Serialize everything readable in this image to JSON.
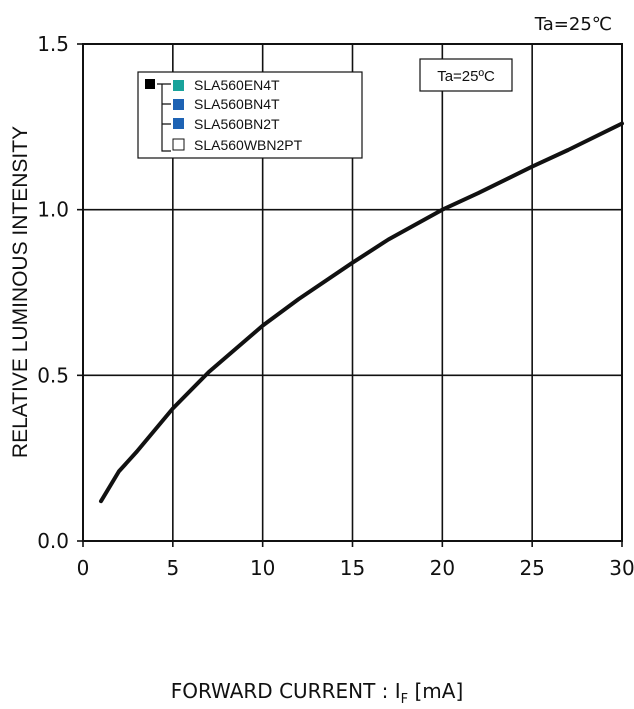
{
  "corner_label": "Ta=25℃",
  "box_label": "Ta=25ºC",
  "chart_data": {
    "type": "line",
    "ylabel": "RELATIVE LUMINOUS INTENSITY",
    "xlabel_main": "FORWARD CURRENT : I",
    "xlabel_sub": "F",
    "xlabel_unit": " [mA]",
    "xlim": [
      0,
      30
    ],
    "ylim": [
      0,
      1.5
    ],
    "x_ticks": [
      0,
      5,
      10,
      15,
      20,
      25,
      30
    ],
    "x_tick_labels": [
      "0",
      "5",
      "10",
      "15",
      "20",
      "25",
      "30"
    ],
    "y_ticks": [
      0,
      0.5,
      1.0,
      1.5
    ],
    "y_tick_labels": [
      "0.0",
      "0.5",
      "1.0",
      "1.5"
    ],
    "grid": true,
    "legend_position": "top-left",
    "legend": [
      {
        "name": "SLA560EN4T",
        "color": "#19a39b",
        "filled": true
      },
      {
        "name": "SLA560BN4T",
        "color": "#1e63b4",
        "filled": true
      },
      {
        "name": "SLA560BN2T",
        "color": "#1e63b4",
        "filled": true
      },
      {
        "name": "SLA560WBN2PT",
        "color": "#ffffff",
        "filled": false
      }
    ],
    "series": [
      {
        "line_color": "#111111",
        "x": [
          1,
          2,
          3,
          5,
          7,
          10,
          12,
          15,
          17,
          20,
          22,
          25,
          27,
          30
        ],
        "y": [
          0.12,
          0.21,
          0.27,
          0.4,
          0.51,
          0.65,
          0.73,
          0.84,
          0.91,
          1.0,
          1.05,
          1.13,
          1.18,
          1.26
        ]
      }
    ]
  }
}
